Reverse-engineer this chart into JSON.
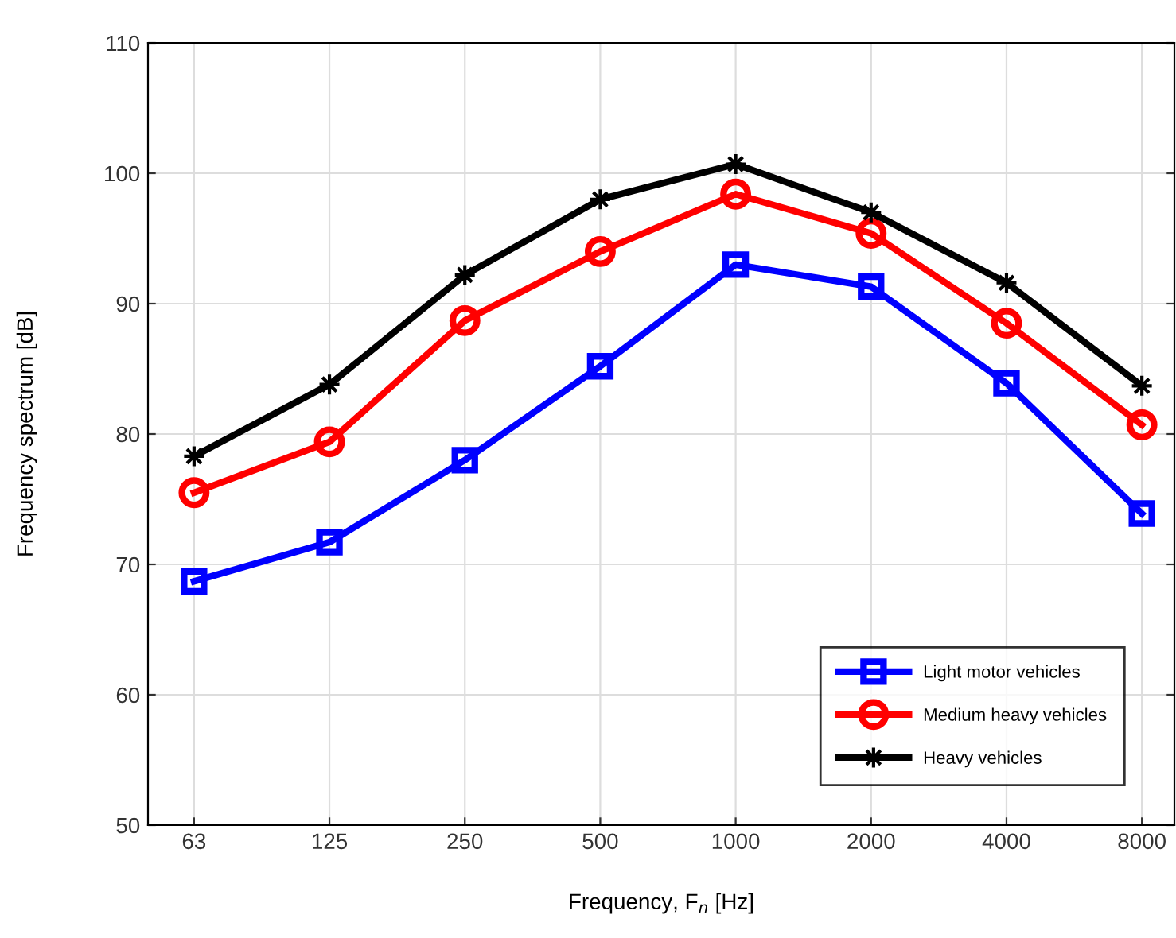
{
  "chart_data": {
    "type": "line",
    "xlabel": "Frequency, F$_{n}$ [Hz]",
    "ylabel": "Frequency spectrum [dB]",
    "categories": [
      "63",
      "125",
      "250",
      "500",
      "1000",
      "2000",
      "4000",
      "8000"
    ],
    "ylim": [
      50,
      110
    ],
    "yticks": [
      50,
      60,
      70,
      80,
      90,
      100,
      110
    ],
    "grid": true,
    "legend": "bottom right",
    "line_style": "solid",
    "series": [
      {
        "name": "Light motor vehicles",
        "color": "#0000ff",
        "marker": "square",
        "values": [
          68.7,
          71.7,
          78.0,
          85.2,
          93.0,
          91.3,
          83.9,
          73.9
        ]
      },
      {
        "name": "Medium heavy vehicles",
        "color": "#ff0000",
        "marker": "circle",
        "values": [
          75.5,
          79.4,
          88.7,
          94.0,
          98.4,
          95.4,
          88.5,
          80.7
        ]
      },
      {
        "name": "Heavy vehicles",
        "color": "#000000",
        "marker": "star",
        "values": [
          78.3,
          83.8,
          92.2,
          98.0,
          100.7,
          97.0,
          91.6,
          83.7
        ]
      }
    ]
  }
}
